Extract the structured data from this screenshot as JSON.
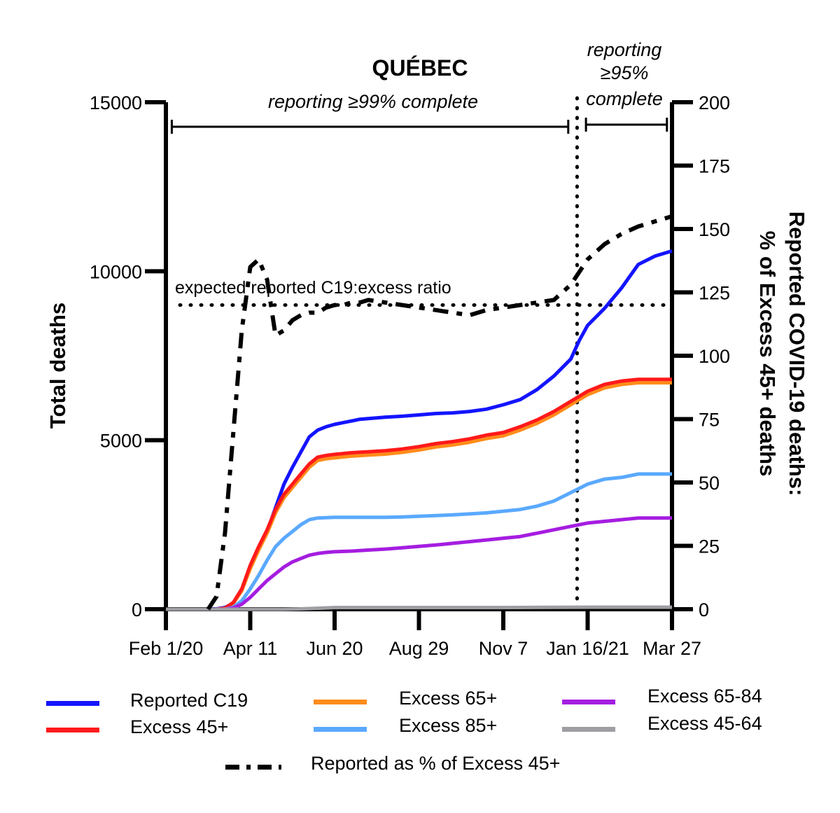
{
  "chart_data": {
    "type": "line",
    "title": "QUÉBEC",
    "ylabel_left": "Total deaths",
    "ylabel_right": [
      "Reported COVID-19 deaths:",
      "% of Excess 45+ deaths"
    ],
    "x_tick_labels": [
      "Feb 1/20",
      "Apr 11",
      "Jun 20",
      "Aug 29",
      "Nov 7",
      "Jan 16/21",
      "Mar 27"
    ],
    "x_unit": "weeks since Feb 1 2020",
    "xlim": [
      0,
      60
    ],
    "ylim_left": [
      0,
      15000
    ],
    "y_left_ticks": [
      0,
      5000,
      10000,
      15000
    ],
    "ylim_right": [
      0,
      200
    ],
    "y_right_ticks": [
      0,
      25,
      50,
      75,
      100,
      125,
      150,
      175,
      200
    ],
    "annotations": {
      "period1": "reporting ≥99% complete",
      "period2_line1": "reporting",
      "period2_line2": "≥95%",
      "period2_line3": "complete",
      "ratio_label": "expected reported C19:excess ratio"
    },
    "period1_range": [
      1,
      48
    ],
    "period2_range": [
      50,
      59
    ],
    "vline_x": 49,
    "expected_ratio": 120,
    "series": [
      {
        "name": "Reported C19",
        "color": "#1414ff",
        "axis": "left",
        "x": [
          0,
          5,
          6,
          7,
          8,
          9,
          10,
          11,
          12,
          13,
          14,
          15,
          16,
          17,
          18,
          19,
          20,
          21,
          22,
          23,
          24,
          26,
          28,
          30,
          32,
          34,
          36,
          38,
          40,
          42,
          44,
          46,
          48,
          49,
          50,
          52,
          54,
          56,
          58,
          60
        ],
        "y": [
          0,
          0,
          10,
          50,
          180,
          550,
          1250,
          1800,
          2300,
          3000,
          3700,
          4200,
          4650,
          5100,
          5300,
          5400,
          5470,
          5520,
          5570,
          5620,
          5640,
          5680,
          5710,
          5750,
          5790,
          5810,
          5850,
          5920,
          6050,
          6200,
          6500,
          6900,
          7400,
          7950,
          8400,
          8900,
          9500,
          10200,
          10450,
          10600
        ]
      },
      {
        "name": "Excess 65+",
        "color": "#ff8c1a",
        "axis": "left",
        "x": [
          0,
          6,
          7,
          8,
          9,
          10,
          11,
          12,
          13,
          14,
          15,
          16,
          17,
          18,
          19,
          20,
          22,
          24,
          26,
          28,
          30,
          32,
          34,
          36,
          38,
          40,
          42,
          44,
          46,
          48,
          50,
          52,
          54,
          56,
          58,
          60
        ],
        "y": [
          0,
          0,
          30,
          180,
          550,
          1200,
          1750,
          2250,
          2850,
          3300,
          3600,
          3900,
          4200,
          4400,
          4450,
          4480,
          4530,
          4560,
          4590,
          4640,
          4710,
          4800,
          4860,
          4940,
          5050,
          5130,
          5300,
          5500,
          5750,
          6050,
          6350,
          6550,
          6650,
          6700,
          6700,
          6700
        ]
      },
      {
        "name": "Excess 45+",
        "color": "#ff1a1a",
        "axis": "left",
        "x": [
          0,
          6,
          7,
          8,
          9,
          10,
          11,
          12,
          13,
          14,
          15,
          16,
          17,
          18,
          19,
          20,
          22,
          24,
          26,
          28,
          30,
          32,
          34,
          36,
          38,
          40,
          42,
          44,
          46,
          48,
          50,
          52,
          54,
          56,
          58,
          60
        ],
        "y": [
          0,
          0,
          30,
          200,
          600,
          1300,
          1850,
          2350,
          2950,
          3400,
          3700,
          4000,
          4300,
          4500,
          4550,
          4580,
          4630,
          4660,
          4690,
          4740,
          4810,
          4900,
          4960,
          5040,
          5150,
          5230,
          5400,
          5600,
          5850,
          6150,
          6450,
          6650,
          6750,
          6800,
          6800,
          6800
        ]
      },
      {
        "name": "Excess 85+",
        "color": "#5aa9ff",
        "axis": "left",
        "x": [
          0,
          7,
          8,
          9,
          10,
          11,
          12,
          13,
          14,
          15,
          16,
          17,
          18,
          19,
          20,
          22,
          24,
          26,
          28,
          30,
          32,
          34,
          36,
          38,
          40,
          42,
          44,
          46,
          48,
          50,
          52,
          54,
          56,
          58,
          60
        ],
        "y": [
          0,
          0,
          60,
          250,
          600,
          1000,
          1450,
          1850,
          2100,
          2300,
          2500,
          2650,
          2700,
          2710,
          2720,
          2720,
          2720,
          2720,
          2730,
          2750,
          2770,
          2790,
          2820,
          2850,
          2900,
          2950,
          3050,
          3200,
          3450,
          3700,
          3850,
          3900,
          4000,
          4000,
          4000
        ]
      },
      {
        "name": "Excess 65-84",
        "color": "#a51de0",
        "axis": "left",
        "x": [
          0,
          7,
          8,
          9,
          10,
          11,
          12,
          13,
          14,
          15,
          16,
          17,
          18,
          19,
          20,
          22,
          24,
          26,
          28,
          30,
          32,
          34,
          36,
          38,
          40,
          42,
          44,
          46,
          48,
          50,
          52,
          54,
          56,
          58,
          60
        ],
        "y": [
          0,
          0,
          40,
          150,
          350,
          600,
          850,
          1050,
          1250,
          1400,
          1500,
          1600,
          1650,
          1680,
          1700,
          1720,
          1750,
          1780,
          1820,
          1860,
          1900,
          1950,
          2000,
          2050,
          2100,
          2150,
          2250,
          2350,
          2450,
          2550,
          2600,
          2650,
          2700,
          2700,
          2700
        ]
      },
      {
        "name": "Excess 45-64",
        "color": "#9e9ea3",
        "axis": "left",
        "x": [
          0,
          10,
          14,
          16,
          18,
          20,
          30,
          40,
          50,
          60
        ],
        "y": [
          0,
          0,
          0,
          10,
          30,
          50,
          50,
          50,
          60,
          60
        ]
      },
      {
        "name": "Reported as % of Excess 45+",
        "color": "#000000",
        "axis": "right",
        "dash": true,
        "x": [
          5,
          6,
          7,
          8,
          9,
          10,
          11,
          12,
          13,
          14,
          15,
          16,
          17,
          18,
          19,
          20,
          21,
          22,
          23,
          24,
          26,
          28,
          30,
          32,
          34,
          36,
          38,
          40,
          42,
          44,
          46,
          48,
          49,
          50,
          51,
          52,
          54,
          56,
          58,
          60
        ],
        "y": [
          0,
          5,
          30,
          70,
          110,
          135,
          138,
          130,
          108,
          110,
          114,
          116,
          117,
          117,
          119,
          120,
          120,
          121,
          121,
          122,
          121,
          120,
          119,
          118,
          117,
          116,
          118,
          119,
          120,
          121,
          122,
          128,
          133,
          138,
          141,
          144,
          148,
          151,
          153,
          155
        ]
      }
    ]
  },
  "legend": [
    {
      "label": "Reported C19",
      "color": "#1414ff"
    },
    {
      "label": "Excess 45+",
      "color": "#ff1a1a"
    },
    {
      "label": "Excess 65+",
      "color": "#ff8c1a"
    },
    {
      "label": "Excess 85+",
      "color": "#5aa9ff"
    },
    {
      "label": "Excess 65-84",
      "color": "#a51de0"
    },
    {
      "label": "Excess 45-64",
      "color": "#9e9ea3"
    },
    {
      "label": "Reported as % of Excess 45+",
      "color": "#000000"
    }
  ]
}
